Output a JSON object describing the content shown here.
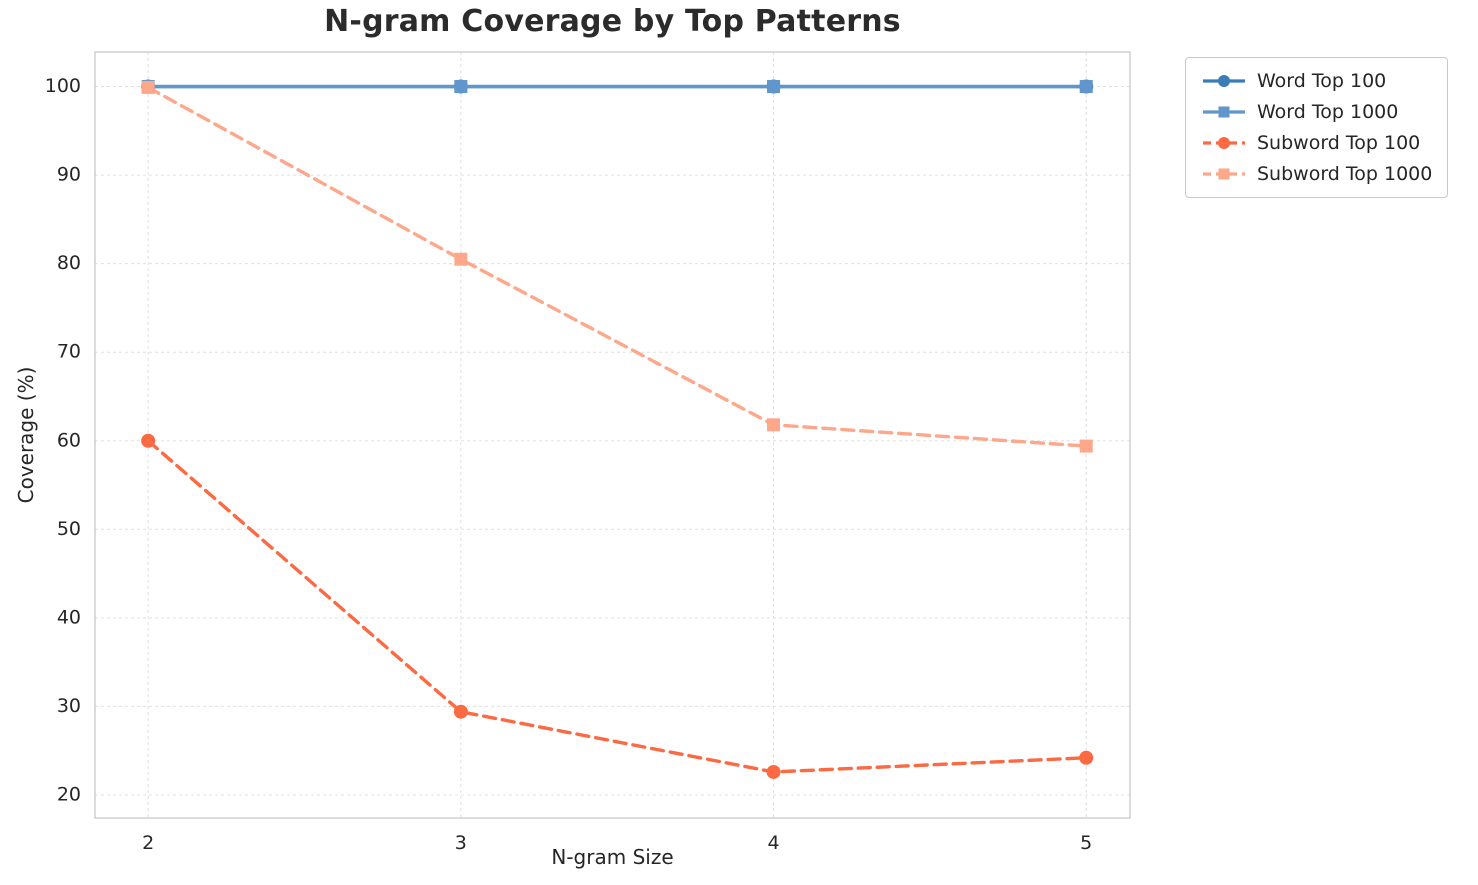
{
  "chart_data": {
    "type": "line",
    "title": "N-gram Coverage by Top Patterns",
    "xlabel": "N-gram Size",
    "ylabel": "Coverage (%)",
    "x": [
      2,
      3,
      4,
      5
    ],
    "series": [
      {
        "name": "Word Top 100",
        "values": [
          100,
          100,
          100,
          100
        ],
        "color": "#3a7cb8",
        "marker": "circle",
        "line_style": "solid"
      },
      {
        "name": "Word Top 1000",
        "values": [
          100,
          100,
          100,
          100
        ],
        "color": "#6096cb",
        "marker": "square",
        "line_style": "solid"
      },
      {
        "name": "Subword Top 100",
        "values": [
          60.0,
          29.4,
          22.6,
          24.2
        ],
        "color": "#fb6a43",
        "marker": "circle",
        "line_style": "dashed"
      },
      {
        "name": "Subword Top 1000",
        "values": [
          99.9,
          80.5,
          61.8,
          59.4
        ],
        "color": "#fda78b",
        "marker": "square",
        "line_style": "dashed"
      }
    ],
    "xticks": [
      2,
      3,
      4,
      5
    ],
    "yticks": [
      20,
      30,
      40,
      50,
      60,
      70,
      80,
      90,
      100
    ],
    "xlim": [
      1.83,
      5.14
    ],
    "ylim": [
      17.4,
      103.9
    ],
    "grid": true,
    "legend_position": "outside-right-top"
  }
}
